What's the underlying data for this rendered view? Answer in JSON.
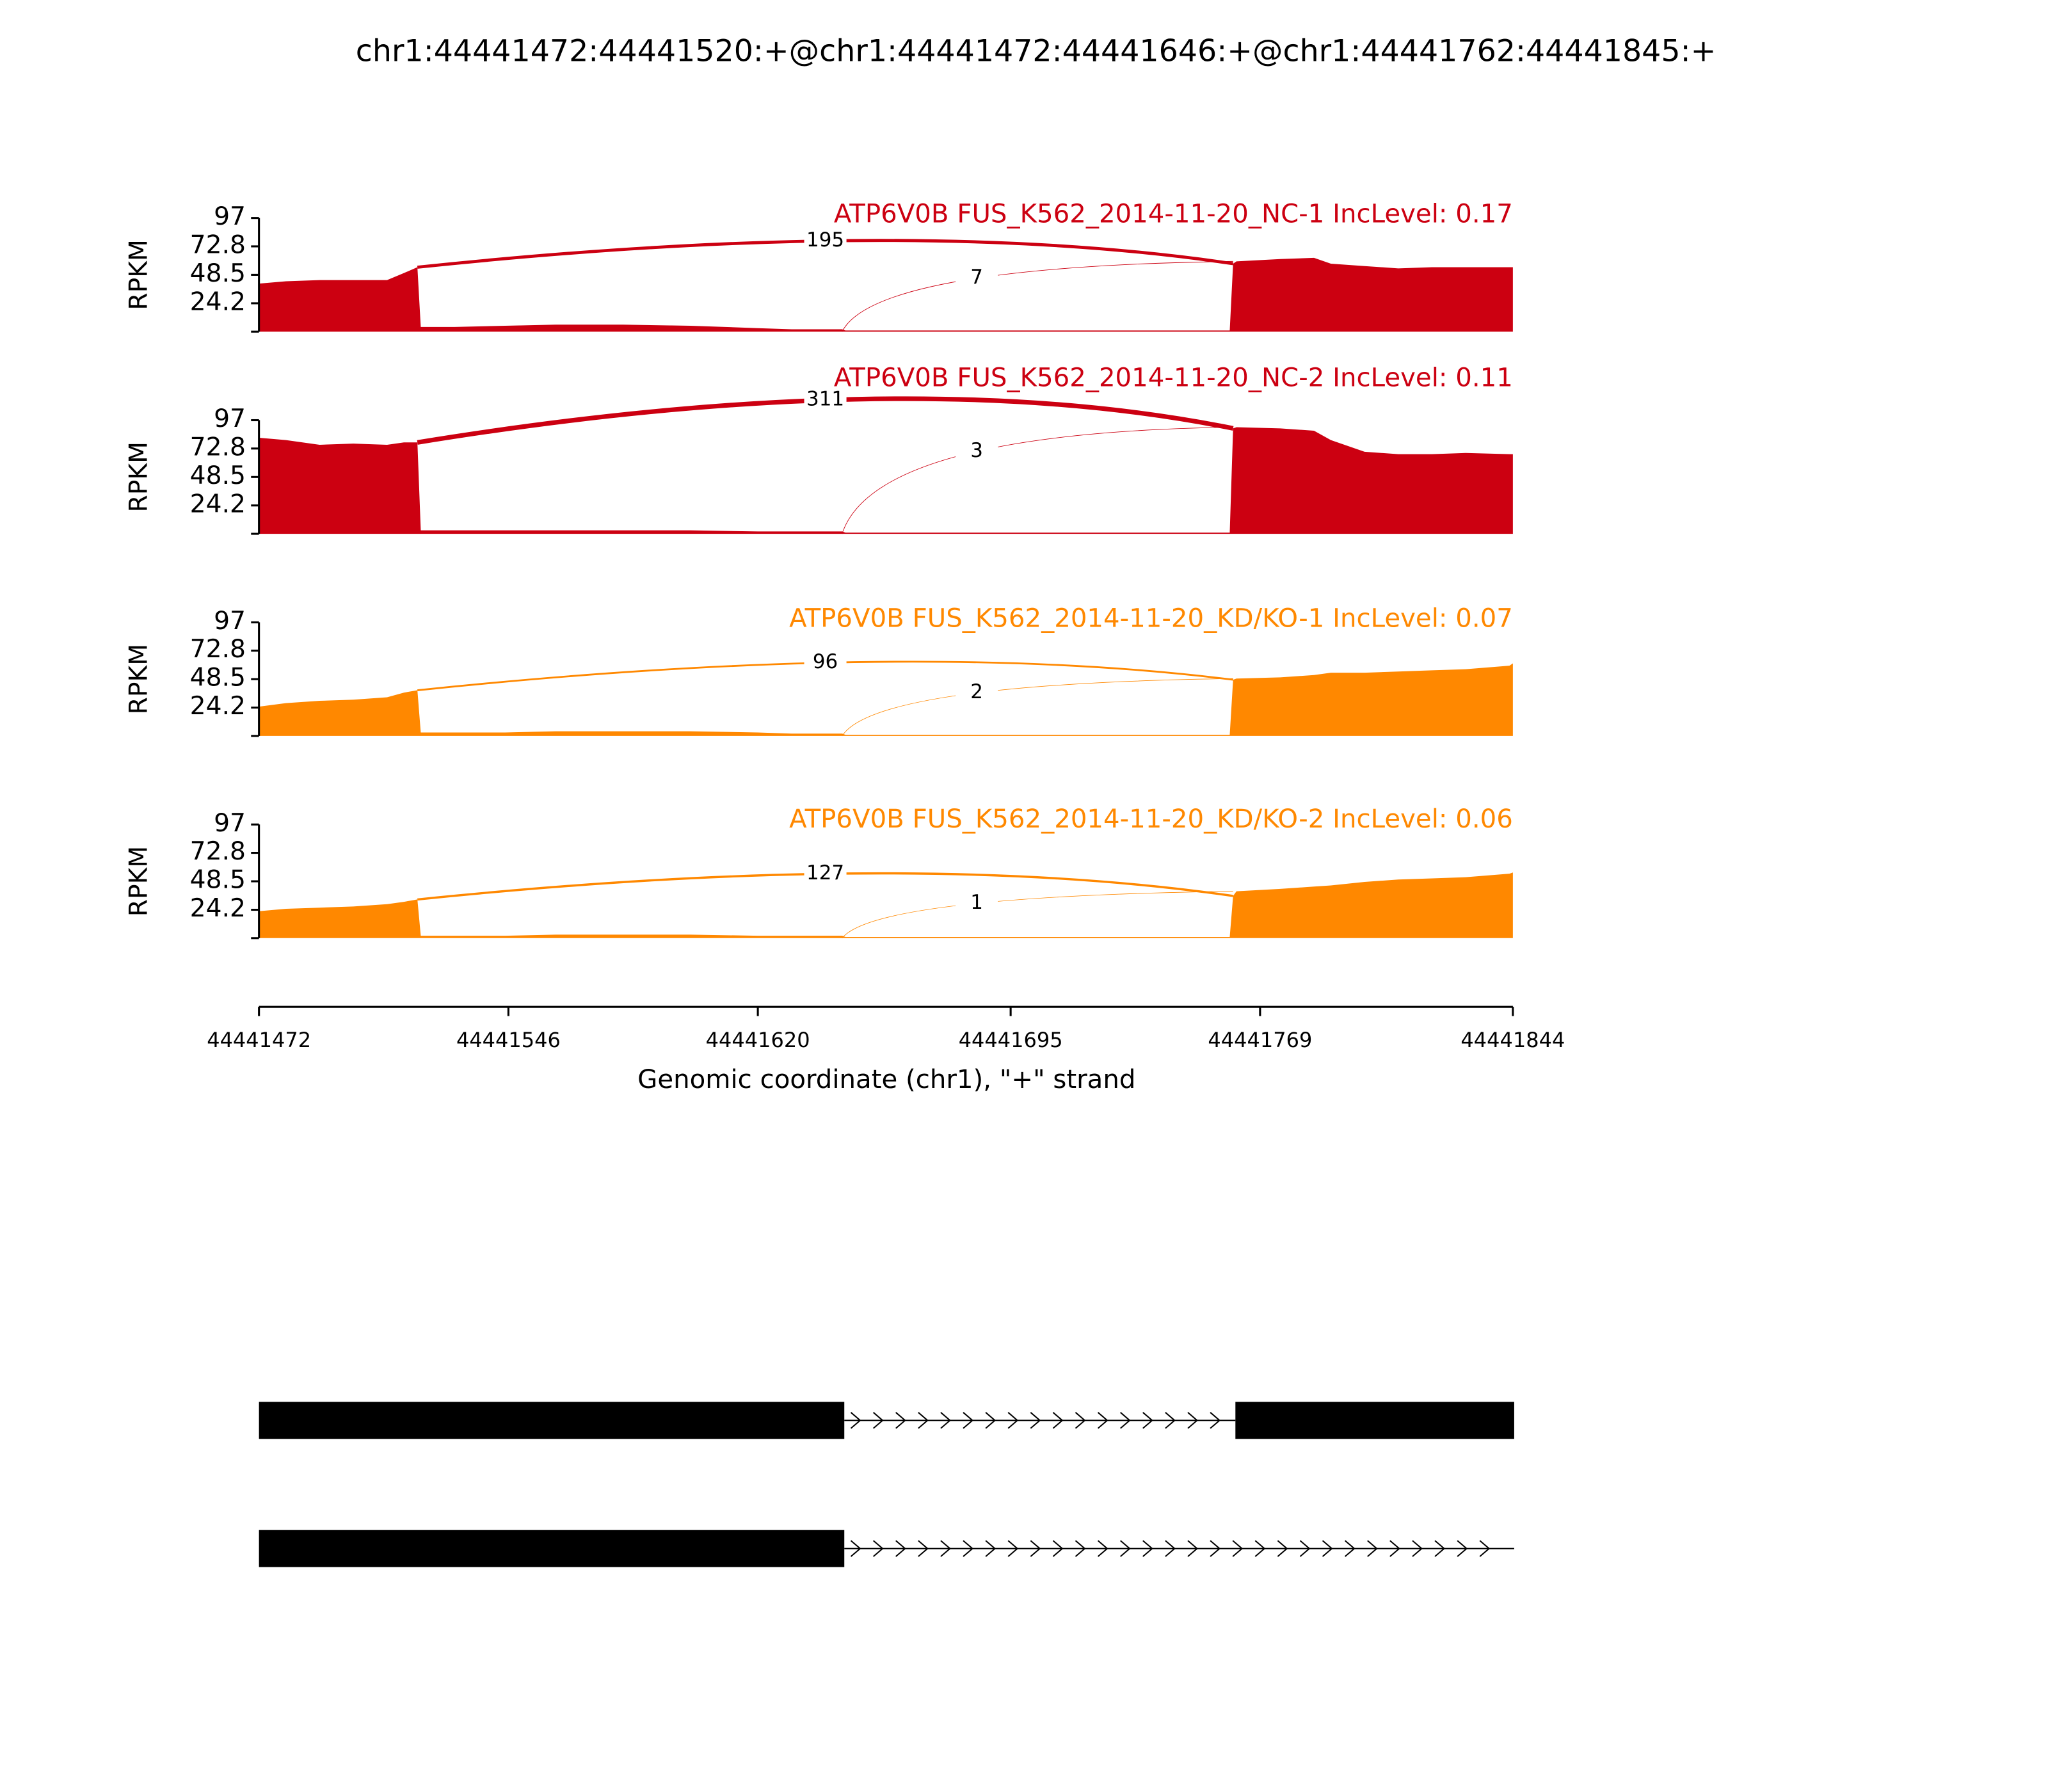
{
  "title": "chr1:44441472:44441520:+@chr1:44441472:44441646:+@chr1:44441762:44441845:+",
  "x_axis": {
    "label": "Genomic coordinate (chr1), \"+\" strand",
    "xlim": [
      44441472,
      44441844
    ],
    "xticks": [
      44441472,
      44441546,
      44441620,
      44441695,
      44441769,
      44441844
    ]
  },
  "chart_data": [
    {
      "type": "area",
      "title": "ATP6V0B FUS_K562_2014-11-20_NC-1 IncLevel: 0.17",
      "ylabel": "RPKM",
      "color": "#cc0011",
      "xlim": [
        44441472,
        44441844
      ],
      "ylim": [
        0,
        97
      ],
      "yticks": [
        24.2,
        48.5,
        72.8,
        97
      ],
      "x": [
        44441472,
        44441480,
        44441490,
        44441500,
        44441510,
        44441515,
        44441519,
        44441520,
        44441530,
        44441545,
        44441560,
        44441580,
        44441600,
        44441620,
        44441630,
        44441640,
        44441645,
        44441646,
        44441660,
        44441680,
        44441700,
        44441720,
        44441740,
        44441760,
        44441761,
        44441762,
        44441775,
        44441785,
        44441790,
        44441800,
        44441810,
        44441820,
        44441830,
        44441843,
        44441844
      ],
      "values": [
        41,
        43,
        44,
        44,
        44,
        50,
        55,
        4,
        4,
        5,
        6,
        6,
        5,
        3,
        2,
        2,
        2,
        1,
        1,
        1,
        1,
        1,
        1,
        1,
        58,
        60,
        62,
        63,
        58,
        56,
        54,
        55,
        55,
        55,
        55
      ],
      "junctions": [
        {
          "start": 44441519,
          "end": 44441761,
          "value": 195
        },
        {
          "start": 44441645,
          "end": 44441761,
          "value": 7
        }
      ]
    },
    {
      "type": "area",
      "title": "ATP6V0B FUS_K562_2014-11-20_NC-2 IncLevel: 0.11",
      "ylabel": "RPKM",
      "color": "#cc0011",
      "xlim": [
        44441472,
        44441844
      ],
      "ylim": [
        0,
        97
      ],
      "yticks": [
        24.2,
        48.5,
        72.8,
        97
      ],
      "x": [
        44441472,
        44441480,
        44441490,
        44441500,
        44441510,
        44441515,
        44441519,
        44441520,
        44441530,
        44441545,
        44441560,
        44441580,
        44441600,
        44441620,
        44441630,
        44441640,
        44441645,
        44441646,
        44441660,
        44441680,
        44441700,
        44441720,
        44441740,
        44441760,
        44441761,
        44441762,
        44441775,
        44441785,
        44441790,
        44441800,
        44441810,
        44441820,
        44441830,
        44441843,
        44441844
      ],
      "values": [
        82,
        80,
        76,
        77,
        76,
        78,
        78,
        3,
        3,
        3,
        3,
        3,
        3,
        2,
        2,
        2,
        2,
        1,
        1,
        1,
        1,
        1,
        1,
        1,
        90,
        91,
        90,
        88,
        80,
        70,
        68,
        68,
        69,
        68,
        68
      ],
      "junctions": [
        {
          "start": 44441519,
          "end": 44441761,
          "value": 311
        },
        {
          "start": 44441645,
          "end": 44441761,
          "value": 3
        }
      ]
    },
    {
      "type": "area",
      "title": "ATP6V0B FUS_K562_2014-11-20_KD/KO-1 IncLevel: 0.07",
      "ylabel": "RPKM",
      "color": "#ff8800",
      "xlim": [
        44441472,
        44441844
      ],
      "ylim": [
        0,
        97
      ],
      "yticks": [
        24.2,
        48.5,
        72.8,
        97
      ],
      "x": [
        44441472,
        44441480,
        44441490,
        44441500,
        44441510,
        44441515,
        44441519,
        44441520,
        44441530,
        44441545,
        44441560,
        44441580,
        44441600,
        44441620,
        44441630,
        44441640,
        44441645,
        44441646,
        44441660,
        44441680,
        44441700,
        44441720,
        44441740,
        44441760,
        44441761,
        44441762,
        44441775,
        44441785,
        44441790,
        44441800,
        44441810,
        44441820,
        44441830,
        44441843,
        44441844
      ],
      "values": [
        25,
        28,
        30,
        31,
        33,
        37,
        39,
        3,
        3,
        3,
        4,
        4,
        4,
        3,
        2,
        2,
        2,
        1,
        1,
        1,
        1,
        1,
        1,
        1,
        48,
        49,
        50,
        52,
        54,
        54,
        55,
        56,
        57,
        60,
        62
      ],
      "junctions": [
        {
          "start": 44441519,
          "end": 44441761,
          "value": 96
        },
        {
          "start": 44441645,
          "end": 44441761,
          "value": 2
        }
      ]
    },
    {
      "type": "area",
      "title": "ATP6V0B FUS_K562_2014-11-20_KD/KO-2 IncLevel: 0.06",
      "ylabel": "RPKM",
      "color": "#ff8800",
      "xlim": [
        44441472,
        44441844
      ],
      "ylim": [
        0,
        97
      ],
      "yticks": [
        24.2,
        48.5,
        72.8,
        97
      ],
      "x": [
        44441472,
        44441480,
        44441490,
        44441500,
        44441510,
        44441515,
        44441519,
        44441520,
        44441530,
        44441545,
        44441560,
        44441580,
        44441600,
        44441620,
        44441630,
        44441640,
        44441645,
        44441646,
        44441660,
        44441680,
        44441700,
        44441720,
        44441740,
        44441760,
        44441761,
        44441762,
        44441775,
        44441785,
        44441790,
        44441800,
        44441810,
        44441820,
        44441830,
        44441843,
        44441844
      ],
      "values": [
        23,
        25,
        26,
        27,
        29,
        31,
        33,
        2,
        2,
        2,
        3,
        3,
        3,
        2,
        2,
        2,
        2,
        1,
        1,
        1,
        1,
        1,
        1,
        1,
        36,
        40,
        42,
        44,
        45,
        48,
        50,
        51,
        52,
        55,
        56
      ],
      "junctions": [
        {
          "start": 44441519,
          "end": 44441761,
          "value": 127
        },
        {
          "start": 44441645,
          "end": 44441761,
          "value": 1
        }
      ]
    }
  ]
}
